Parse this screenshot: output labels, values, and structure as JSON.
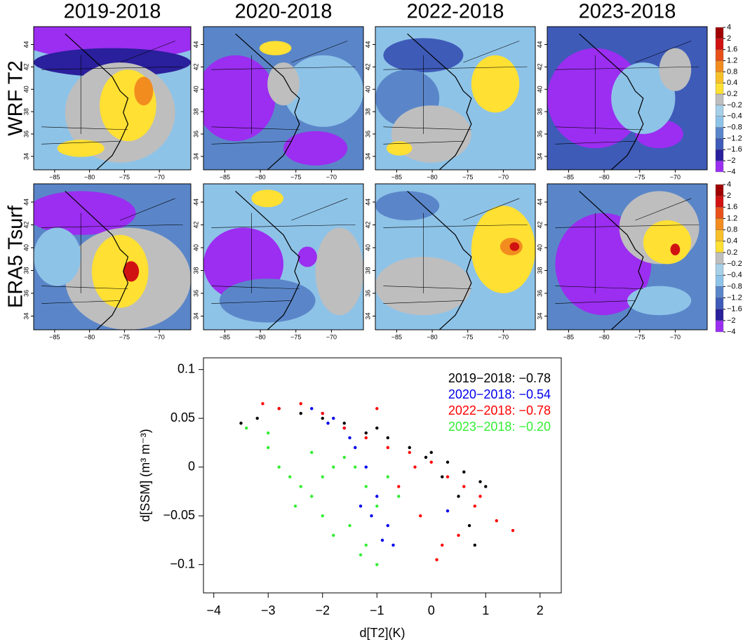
{
  "chart_data": [
    {
      "type": "map",
      "columns": [
        "2019-2018",
        "2020-2018",
        "2022-2018",
        "2023-2018"
      ],
      "rows": [
        "WRF T2",
        "ERA5 Tsurf"
      ],
      "lon_lim": [
        -88,
        -65.5
      ],
      "lat_lim": [
        32.8,
        45.6
      ],
      "lon_ticks": [
        {
          "value": -85,
          "label": "−85"
        },
        {
          "value": -80,
          "label": "−80"
        },
        {
          "value": -75,
          "label": "−75"
        },
        {
          "value": -70,
          "label": "−70"
        }
      ],
      "lat_ticks": [
        34,
        36,
        38,
        40,
        42,
        44
      ],
      "levels": [
        4,
        2,
        1.6,
        1.2,
        0.8,
        0.4,
        0.2,
        {
          "value": -0.2,
          "label": "−0.2"
        },
        {
          "value": -0.4,
          "label": "−0.4"
        },
        {
          "value": -0.8,
          "label": "−0.8"
        },
        {
          "value": -1.2,
          "label": "−1.2"
        },
        {
          "value": -1.6,
          "label": "−1.6"
        },
        {
          "value": -2,
          "label": "−2"
        },
        {
          "value": -4,
          "label": "−4"
        }
      ],
      "colors": [
        "#a00000",
        "#d11212",
        "#e8501a",
        "#f28c1e",
        "#f7c02a",
        "#ffe033",
        "#bebebe",
        "#a6cfe8",
        "#8ec3e8",
        "#5a86c9",
        "#3e5bb8",
        "#2a1f9c",
        "#9b2ef0"
      ]
    },
    {
      "type": "scatter",
      "xlabel": "d[T2](K)",
      "ylabel": "d[SSM] (m³ m⁻³)",
      "xlim": [
        -4.19,
        2.39
      ],
      "ylim": [
        -0.129,
        0.112
      ],
      "xticks": [
        {
          "value": -4,
          "label": "−4"
        },
        {
          "value": -3,
          "label": "−3"
        },
        {
          "value": -2,
          "label": "−2"
        },
        {
          "value": -1,
          "label": "−1"
        },
        0,
        1,
        2
      ],
      "yticks": [
        0.1,
        0.05,
        0,
        {
          "value": -0.05,
          "label": "−0.05"
        },
        {
          "value": -0.1,
          "label": "−0.1"
        }
      ],
      "series": [
        {
          "name": "2019−2018: −0.78",
          "color": "#000000",
          "x": [
            -3.5,
            -3.2,
            -2.8,
            -2.4,
            -2.0,
            -1.6,
            -1.2,
            -0.8,
            -0.4,
            0,
            0.3,
            0.6,
            0.9,
            1.0,
            0.5,
            0.2,
            -0.1,
            0.7,
            0.8,
            -1.0
          ],
          "values": [
            0.045,
            0.05,
            0.06,
            0.055,
            0.05,
            0.045,
            0.035,
            0.03,
            0.02,
            0.015,
            0.005,
            -0.005,
            -0.015,
            -0.02,
            -0.03,
            -0.01,
            0.01,
            -0.06,
            -0.08,
            0.04
          ]
        },
        {
          "name": "2020−2018: −0.54",
          "color": "#0000ee",
          "x": [
            -2.2,
            -2.0,
            -1.8,
            -1.6,
            -1.4,
            -1.2,
            -1.0,
            -0.8,
            -1.1,
            -0.9,
            -1.3,
            -0.7,
            -1.5,
            -1.9,
            0.3
          ],
          "values": [
            0.06,
            0.055,
            0.05,
            0.04,
            0.02,
            0.0,
            -0.03,
            -0.06,
            -0.05,
            -0.075,
            -0.04,
            -0.08,
            0.03,
            0.045,
            -0.045
          ]
        },
        {
          "name": "2022−2018: −0.78",
          "color": "#ff0000",
          "x": [
            -3.1,
            -2.8,
            -2.4,
            -2.0,
            -1.6,
            -1.2,
            -0.8,
            -0.4,
            0,
            0.3,
            0.6,
            0.9,
            1.2,
            1.5,
            0.2,
            -0.2,
            0.5,
            -0.6,
            0.1,
            0.8,
            -1.0,
            -0.3
          ],
          "values": [
            0.065,
            0.06,
            0.065,
            0.055,
            0.04,
            0.03,
            0.02,
            0.015,
            0.005,
            -0.01,
            -0.02,
            -0.03,
            -0.055,
            -0.065,
            -0.08,
            -0.05,
            -0.07,
            -0.02,
            -0.095,
            -0.04,
            0.06,
            0.0
          ]
        },
        {
          "name": "2023−2018: −0.20",
          "color": "#33ee33",
          "x": [
            -3.4,
            -3.0,
            -2.8,
            -2.6,
            -2.4,
            -2.2,
            -2.0,
            -1.8,
            -1.6,
            -1.4,
            -1.2,
            -1.0,
            -0.8,
            -2.5,
            -2.0,
            -1.5,
            -1.2,
            -1.0,
            -0.6,
            -3.0,
            -2.2,
            -1.8,
            -1.3
          ],
          "values": [
            0.04,
            0.02,
            0.0,
            -0.01,
            -0.02,
            -0.03,
            -0.01,
            0.0,
            0.01,
            0.0,
            -0.02,
            -0.04,
            -0.01,
            -0.04,
            -0.05,
            -0.06,
            -0.08,
            -0.1,
            -0.03,
            0.035,
            0.015,
            -0.07,
            -0.09
          ]
        }
      ]
    }
  ]
}
